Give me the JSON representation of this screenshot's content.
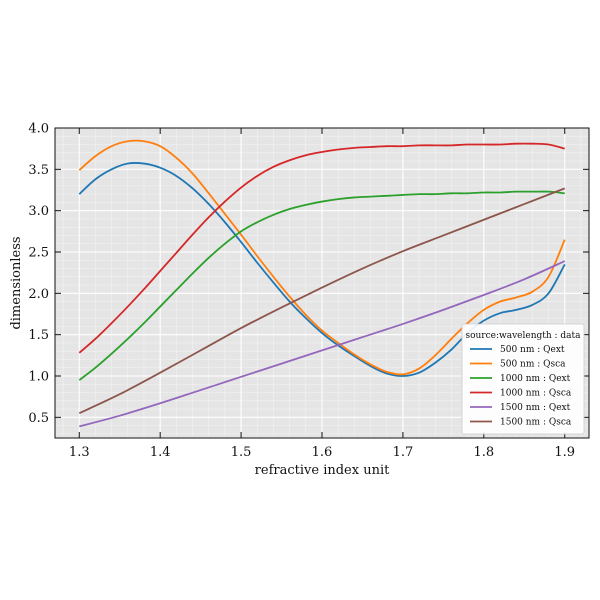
{
  "chart_data": {
    "type": "line",
    "xlabel": "refractive index unit",
    "ylabel": "dimensionless",
    "xlim": [
      1.27,
      1.93
    ],
    "ylim": [
      0.25,
      4.0
    ],
    "x_ticks": [
      "1.3",
      "1.4",
      "1.5",
      "1.6",
      "1.7",
      "1.8",
      "1.9"
    ],
    "y_ticks": [
      "0.5",
      "1.0",
      "1.5",
      "2.0",
      "2.5",
      "3.0",
      "3.5",
      "4.0"
    ],
    "grid": true,
    "legend": {
      "title": "source:wavelength : data",
      "placement": "lower-right"
    },
    "series": [
      {
        "name": "500 nm : Qext",
        "color": "#1f77b4",
        "x": [
          1.3,
          1.32,
          1.34,
          1.36,
          1.38,
          1.4,
          1.42,
          1.44,
          1.46,
          1.48,
          1.5,
          1.52,
          1.54,
          1.56,
          1.58,
          1.6,
          1.62,
          1.64,
          1.66,
          1.68,
          1.7,
          1.72,
          1.74,
          1.76,
          1.78,
          1.8,
          1.82,
          1.84,
          1.86,
          1.88,
          1.9
        ],
        "y": [
          3.2,
          3.38,
          3.5,
          3.57,
          3.57,
          3.52,
          3.42,
          3.27,
          3.08,
          2.86,
          2.62,
          2.37,
          2.13,
          1.9,
          1.7,
          1.52,
          1.37,
          1.24,
          1.12,
          1.03,
          1.0,
          1.04,
          1.16,
          1.32,
          1.52,
          1.67,
          1.76,
          1.8,
          1.86,
          2.0,
          2.35
        ]
      },
      {
        "name": "500 nm : Qsca",
        "color": "#ff7f0e",
        "x": [
          1.3,
          1.32,
          1.34,
          1.36,
          1.38,
          1.4,
          1.42,
          1.44,
          1.46,
          1.48,
          1.5,
          1.52,
          1.54,
          1.56,
          1.58,
          1.6,
          1.62,
          1.64,
          1.66,
          1.68,
          1.7,
          1.72,
          1.74,
          1.76,
          1.78,
          1.8,
          1.82,
          1.84,
          1.86,
          1.88,
          1.9
        ],
        "y": [
          3.49,
          3.66,
          3.78,
          3.84,
          3.84,
          3.78,
          3.64,
          3.45,
          3.21,
          2.96,
          2.71,
          2.45,
          2.2,
          1.96,
          1.74,
          1.55,
          1.4,
          1.26,
          1.14,
          1.05,
          1.02,
          1.09,
          1.25,
          1.45,
          1.64,
          1.8,
          1.9,
          1.95,
          2.02,
          2.2,
          2.65
        ]
      },
      {
        "name": "1000 nm : Qext",
        "color": "#2ca02c",
        "x": [
          1.3,
          1.32,
          1.34,
          1.36,
          1.38,
          1.4,
          1.42,
          1.44,
          1.46,
          1.48,
          1.5,
          1.52,
          1.54,
          1.56,
          1.58,
          1.6,
          1.62,
          1.64,
          1.66,
          1.68,
          1.7,
          1.72,
          1.74,
          1.76,
          1.78,
          1.8,
          1.82,
          1.84,
          1.86,
          1.88,
          1.9
        ],
        "y": [
          0.95,
          1.1,
          1.27,
          1.45,
          1.64,
          1.84,
          2.04,
          2.24,
          2.43,
          2.6,
          2.75,
          2.86,
          2.95,
          3.02,
          3.07,
          3.11,
          3.14,
          3.16,
          3.17,
          3.18,
          3.19,
          3.2,
          3.2,
          3.21,
          3.21,
          3.22,
          3.22,
          3.23,
          3.23,
          3.23,
          3.21
        ]
      },
      {
        "name": "1000 nm : Qsca",
        "color": "#d62728",
        "x": [
          1.3,
          1.32,
          1.34,
          1.36,
          1.38,
          1.4,
          1.42,
          1.44,
          1.46,
          1.48,
          1.5,
          1.52,
          1.54,
          1.56,
          1.58,
          1.6,
          1.62,
          1.64,
          1.66,
          1.68,
          1.7,
          1.72,
          1.74,
          1.76,
          1.78,
          1.8,
          1.82,
          1.84,
          1.86,
          1.88,
          1.9
        ],
        "y": [
          1.28,
          1.45,
          1.64,
          1.84,
          2.05,
          2.27,
          2.49,
          2.71,
          2.92,
          3.11,
          3.28,
          3.42,
          3.53,
          3.61,
          3.67,
          3.71,
          3.74,
          3.76,
          3.77,
          3.78,
          3.78,
          3.79,
          3.79,
          3.79,
          3.8,
          3.8,
          3.8,
          3.81,
          3.81,
          3.8,
          3.75
        ]
      },
      {
        "name": "1500 nm : Qext",
        "color": "#9467bd",
        "x": [
          1.3,
          1.35,
          1.4,
          1.45,
          1.5,
          1.55,
          1.6,
          1.65,
          1.7,
          1.75,
          1.8,
          1.85,
          1.9
        ],
        "y": [
          0.39,
          0.52,
          0.67,
          0.83,
          0.99,
          1.15,
          1.31,
          1.47,
          1.63,
          1.8,
          1.98,
          2.17,
          2.39
        ]
      },
      {
        "name": "1500 nm : Qsca",
        "color": "#8c564b",
        "x": [
          1.3,
          1.35,
          1.4,
          1.45,
          1.5,
          1.55,
          1.6,
          1.65,
          1.7,
          1.75,
          1.8,
          1.85,
          1.9
        ],
        "y": [
          0.55,
          0.78,
          1.04,
          1.31,
          1.58,
          1.83,
          2.07,
          2.3,
          2.51,
          2.7,
          2.89,
          3.08,
          3.27
        ]
      }
    ]
  }
}
